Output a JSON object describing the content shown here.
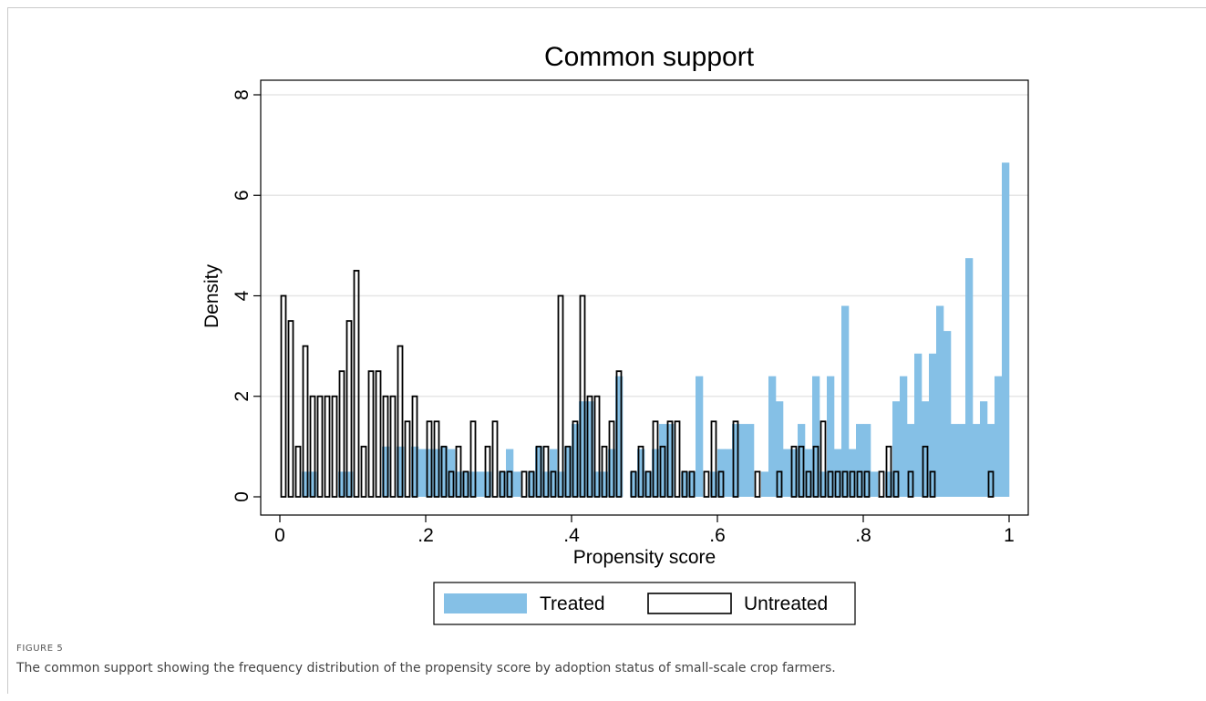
{
  "figure": {
    "label": "FIGURE 5",
    "caption": "The common support showing the frequency distribution of the propensity score by adoption status of small-scale crop farmers."
  },
  "colors": {
    "treated": "#85c0e6",
    "untreated_stroke": "#000000",
    "grid": "#e6e6e6",
    "axis": "#000000"
  },
  "chart_data": {
    "type": "bar",
    "title": "Common support",
    "xlabel": "Propensity score",
    "ylabel": "Density",
    "xlim": [
      0,
      1
    ],
    "ylim": [
      0,
      8
    ],
    "xticks": [
      0,
      0.2,
      0.4,
      0.6,
      0.8,
      1
    ],
    "xtick_labels": [
      "0",
      ".2",
      ".4",
      ".6",
      ".8",
      "1"
    ],
    "yticks": [
      0,
      2,
      4,
      6,
      8
    ],
    "ytick_labels": [
      "0",
      "2",
      "4",
      "6",
      "8"
    ],
    "grid": true,
    "legend_position": "bottom",
    "bin_width": 0.01,
    "series": [
      {
        "name": "Treated",
        "style": "filled",
        "bins": [
          [
            0.03,
            0.5
          ],
          [
            0.04,
            0.5
          ],
          [
            0.08,
            0.5
          ],
          [
            0.09,
            0.5
          ],
          [
            0.14,
            1.0
          ],
          [
            0.16,
            1.0
          ],
          [
            0.18,
            1.0
          ],
          [
            0.19,
            0.95
          ],
          [
            0.2,
            0.95
          ],
          [
            0.21,
            0.95
          ],
          [
            0.22,
            1.0
          ],
          [
            0.23,
            0.95
          ],
          [
            0.24,
            0.5
          ],
          [
            0.25,
            0.5
          ],
          [
            0.26,
            0.5
          ],
          [
            0.27,
            0.5
          ],
          [
            0.28,
            0.5
          ],
          [
            0.3,
            0.5
          ],
          [
            0.31,
            0.95
          ],
          [
            0.32,
            0.5
          ],
          [
            0.34,
            0.5
          ],
          [
            0.35,
            1.0
          ],
          [
            0.36,
            0.5
          ],
          [
            0.37,
            0.95
          ],
          [
            0.38,
            0.5
          ],
          [
            0.39,
            1.0
          ],
          [
            0.4,
            1.45
          ],
          [
            0.41,
            1.9
          ],
          [
            0.42,
            1.9
          ],
          [
            0.43,
            0.5
          ],
          [
            0.44,
            0.5
          ],
          [
            0.45,
            0.95
          ],
          [
            0.46,
            2.4
          ],
          [
            0.48,
            0.5
          ],
          [
            0.49,
            0.95
          ],
          [
            0.5,
            0.5
          ],
          [
            0.51,
            0.95
          ],
          [
            0.52,
            1.45
          ],
          [
            0.53,
            1.45
          ],
          [
            0.55,
            0.5
          ],
          [
            0.56,
            0.5
          ],
          [
            0.57,
            2.4
          ],
          [
            0.59,
            0.5
          ],
          [
            0.6,
            0.95
          ],
          [
            0.61,
            0.95
          ],
          [
            0.62,
            1.45
          ],
          [
            0.63,
            1.45
          ],
          [
            0.64,
            1.45
          ],
          [
            0.66,
            0.5
          ],
          [
            0.67,
            2.4
          ],
          [
            0.68,
            1.9
          ],
          [
            0.69,
            0.95
          ],
          [
            0.7,
            0.95
          ],
          [
            0.71,
            1.45
          ],
          [
            0.72,
            0.95
          ],
          [
            0.73,
            2.4
          ],
          [
            0.74,
            0.5
          ],
          [
            0.75,
            2.4
          ],
          [
            0.76,
            0.95
          ],
          [
            0.77,
            3.8
          ],
          [
            0.78,
            0.95
          ],
          [
            0.79,
            1.45
          ],
          [
            0.8,
            1.45
          ],
          [
            0.81,
            0.5
          ],
          [
            0.83,
            0.5
          ],
          [
            0.84,
            1.9
          ],
          [
            0.85,
            2.4
          ],
          [
            0.86,
            1.45
          ],
          [
            0.87,
            2.85
          ],
          [
            0.88,
            1.9
          ],
          [
            0.89,
            2.85
          ],
          [
            0.9,
            3.8
          ],
          [
            0.91,
            3.3
          ],
          [
            0.92,
            1.45
          ],
          [
            0.93,
            1.45
          ],
          [
            0.94,
            4.75
          ],
          [
            0.95,
            1.45
          ],
          [
            0.96,
            1.9
          ],
          [
            0.97,
            1.45
          ],
          [
            0.98,
            2.4
          ],
          [
            0.99,
            6.65
          ]
        ]
      },
      {
        "name": "Untreated",
        "style": "outline",
        "bins": [
          [
            0.0,
            4.0
          ],
          [
            0.01,
            3.5
          ],
          [
            0.02,
            1.0
          ],
          [
            0.03,
            3.0
          ],
          [
            0.04,
            2.0
          ],
          [
            0.05,
            2.0
          ],
          [
            0.06,
            2.0
          ],
          [
            0.07,
            2.0
          ],
          [
            0.08,
            2.5
          ],
          [
            0.09,
            3.5
          ],
          [
            0.1,
            4.5
          ],
          [
            0.11,
            1.0
          ],
          [
            0.12,
            2.5
          ],
          [
            0.13,
            2.5
          ],
          [
            0.14,
            2.0
          ],
          [
            0.15,
            2.0
          ],
          [
            0.16,
            3.0
          ],
          [
            0.17,
            1.5
          ],
          [
            0.18,
            2.0
          ],
          [
            0.2,
            1.5
          ],
          [
            0.21,
            1.5
          ],
          [
            0.22,
            1.0
          ],
          [
            0.23,
            0.5
          ],
          [
            0.24,
            1.0
          ],
          [
            0.25,
            0.5
          ],
          [
            0.26,
            1.5
          ],
          [
            0.28,
            1.0
          ],
          [
            0.29,
            1.5
          ],
          [
            0.3,
            0.5
          ],
          [
            0.31,
            0.5
          ],
          [
            0.33,
            0.5
          ],
          [
            0.34,
            0.5
          ],
          [
            0.35,
            1.0
          ],
          [
            0.36,
            1.0
          ],
          [
            0.37,
            0.5
          ],
          [
            0.38,
            4.0
          ],
          [
            0.39,
            1.0
          ],
          [
            0.4,
            1.5
          ],
          [
            0.41,
            4.0
          ],
          [
            0.42,
            2.0
          ],
          [
            0.43,
            2.0
          ],
          [
            0.44,
            1.0
          ],
          [
            0.45,
            1.5
          ],
          [
            0.46,
            2.5
          ],
          [
            0.48,
            0.5
          ],
          [
            0.49,
            1.0
          ],
          [
            0.5,
            0.5
          ],
          [
            0.51,
            1.5
          ],
          [
            0.52,
            1.0
          ],
          [
            0.53,
            1.5
          ],
          [
            0.54,
            1.5
          ],
          [
            0.55,
            0.5
          ],
          [
            0.56,
            0.5
          ],
          [
            0.58,
            0.5
          ],
          [
            0.59,
            1.5
          ],
          [
            0.6,
            0.5
          ],
          [
            0.62,
            1.5
          ],
          [
            0.65,
            0.5
          ],
          [
            0.68,
            0.5
          ],
          [
            0.7,
            1.0
          ],
          [
            0.71,
            1.0
          ],
          [
            0.72,
            0.5
          ],
          [
            0.73,
            1.0
          ],
          [
            0.74,
            1.5
          ],
          [
            0.75,
            0.5
          ],
          [
            0.76,
            0.5
          ],
          [
            0.77,
            0.5
          ],
          [
            0.78,
            0.5
          ],
          [
            0.79,
            0.5
          ],
          [
            0.8,
            0.5
          ],
          [
            0.82,
            0.5
          ],
          [
            0.83,
            1.0
          ],
          [
            0.84,
            0.5
          ],
          [
            0.86,
            0.5
          ],
          [
            0.88,
            1.0
          ],
          [
            0.89,
            0.5
          ],
          [
            0.97,
            0.5
          ]
        ]
      }
    ]
  }
}
